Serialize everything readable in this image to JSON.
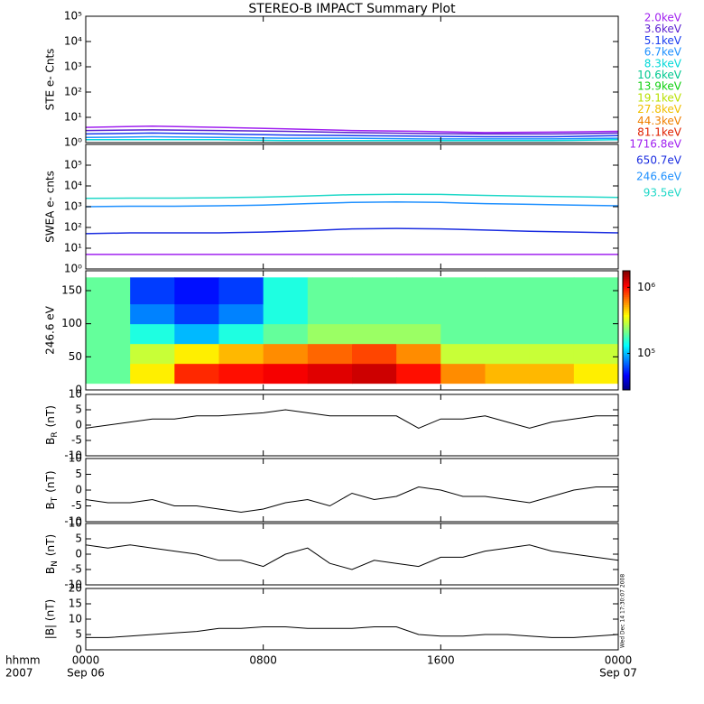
{
  "title": "STEREO-B IMPACT Summary Plot",
  "timestamp": "Wed Dec 14 17:30:07 2008",
  "x_axis": {
    "xlim": [
      0,
      24
    ],
    "xticks": [
      {
        "value": 0,
        "label": "0000"
      },
      {
        "value": 8,
        "label": "0800"
      },
      {
        "value": 16,
        "label": "1600"
      },
      {
        "value": 24,
        "label": "0000"
      }
    ],
    "date_labels": [
      {
        "value": 0,
        "label": "Sep 06"
      },
      {
        "value": 24,
        "label": "Sep 07"
      }
    ],
    "row_labels": [
      "hhmm",
      "2007"
    ]
  },
  "chart_data": [
    {
      "type": "line",
      "ylabel": "STE e- Cnts",
      "log": true,
      "ylim": [
        1,
        100000
      ],
      "yticks": [
        {
          "value": 1,
          "label": "10⁰"
        },
        {
          "value": 10,
          "label": "10¹"
        },
        {
          "value": 100,
          "label": "10²"
        },
        {
          "value": 1000,
          "label": "10³"
        },
        {
          "value": 10000,
          "label": "10⁴"
        },
        {
          "value": 100000,
          "label": "10⁵"
        }
      ],
      "x": [
        0,
        3,
        6,
        9,
        12,
        15,
        18,
        21,
        24
      ],
      "series": [
        {
          "name": "2.0keV",
          "color": "#a020f0",
          "values": [
            4,
            4.5,
            4,
            3.5,
            3,
            2.8,
            2.5,
            2.6,
            2.8
          ]
        },
        {
          "name": "3.6keV",
          "color": "#5a1fd0",
          "values": [
            3,
            3.2,
            3,
            2.8,
            2.5,
            2.3,
            2.2,
            2.2,
            2.4
          ]
        },
        {
          "name": "5.1keV",
          "color": "#1a3cf0",
          "values": [
            2.2,
            2.4,
            2.2,
            2,
            1.9,
            1.8,
            1.7,
            1.7,
            1.9
          ]
        },
        {
          "name": "6.7keV",
          "color": "#1e90ff",
          "values": [
            1.6,
            1.7,
            1.6,
            1.5,
            1.5,
            1.4,
            1.4,
            1.4,
            1.5
          ]
        },
        {
          "name": "8.3keV",
          "color": "#00d8d8",
          "values": [
            1.3,
            1.3,
            1.3,
            1.2,
            1.2,
            1.2,
            1.2,
            1.2,
            1.3
          ]
        },
        {
          "name": "10.6keV",
          "color": "#00c890",
          "values": [
            null,
            null,
            null,
            null,
            null,
            null,
            null,
            null,
            null
          ]
        },
        {
          "name": "13.9keV",
          "color": "#10d010",
          "values": [
            null,
            null,
            null,
            null,
            null,
            null,
            null,
            null,
            null
          ]
        },
        {
          "name": "19.1keV",
          "color": "#b8e000",
          "values": [
            null,
            null,
            null,
            null,
            null,
            null,
            null,
            null,
            null
          ]
        },
        {
          "name": "27.8keV",
          "color": "#f0c000",
          "values": [
            null,
            null,
            null,
            null,
            null,
            null,
            null,
            null,
            null
          ]
        },
        {
          "name": "44.3keV",
          "color": "#f08000",
          "values": [
            null,
            null,
            null,
            null,
            null,
            null,
            null,
            null,
            null
          ]
        },
        {
          "name": "81.1keV",
          "color": "#e02000",
          "values": [
            null,
            null,
            null,
            null,
            null,
            null,
            null,
            null,
            null
          ]
        }
      ]
    },
    {
      "type": "line",
      "ylabel": "SWEA e- cnts",
      "log": true,
      "ylim": [
        1,
        1000000
      ],
      "yticks": [
        {
          "value": 1,
          "label": "10⁰"
        },
        {
          "value": 10,
          "label": "10¹"
        },
        {
          "value": 100,
          "label": "10²"
        },
        {
          "value": 1000,
          "label": "10³"
        },
        {
          "value": 10000,
          "label": "10⁴"
        },
        {
          "value": 100000,
          "label": "10⁵"
        }
      ],
      "x": [
        0,
        2,
        4,
        6,
        8,
        10,
        12,
        14,
        16,
        18,
        20,
        22,
        24
      ],
      "series": [
        {
          "name": "1716.8eV",
          "color": "#a020f0",
          "values": [
            5,
            5,
            5,
            5,
            5,
            5,
            5,
            5,
            5,
            5,
            5,
            5,
            5
          ]
        },
        {
          "name": "650.7eV",
          "color": "#1a2ce0",
          "values": [
            50,
            55,
            55,
            55,
            60,
            70,
            85,
            90,
            85,
            75,
            65,
            60,
            55
          ]
        },
        {
          "name": "246.6eV",
          "color": "#1e90ff",
          "values": [
            1000,
            1050,
            1050,
            1100,
            1200,
            1400,
            1600,
            1700,
            1600,
            1400,
            1300,
            1200,
            1100
          ]
        },
        {
          "name": "93.5eV",
          "color": "#20d8c8",
          "values": [
            2500,
            2600,
            2600,
            2700,
            2900,
            3300,
            3800,
            4000,
            3900,
            3500,
            3200,
            3000,
            2800
          ]
        }
      ]
    },
    {
      "type": "heatmap",
      "ylabel": "246.6 eV",
      "ylim": [
        0,
        180
      ],
      "yticks": [
        0,
        50,
        100,
        150
      ],
      "x_edges": [
        0,
        2,
        4,
        6,
        8,
        10,
        12,
        14,
        16,
        18,
        20,
        22,
        24
      ],
      "y_edges": [
        10,
        40,
        70,
        100,
        130,
        170
      ],
      "z": [
        [
          200000,
          400000,
          900000,
          1000000,
          1100000,
          1200000,
          1300000,
          1000000,
          600000,
          500000,
          500000,
          400000
        ],
        [
          200000,
          300000,
          400000,
          500000,
          600000,
          700000,
          800000,
          600000,
          300000,
          300000,
          300000,
          300000
        ],
        [
          200000,
          150000,
          100000,
          150000,
          200000,
          250000,
          250000,
          250000,
          200000,
          200000,
          200000,
          200000
        ],
        [
          200000,
          80000,
          60000,
          80000,
          150000,
          200000,
          200000,
          200000,
          200000,
          200000,
          200000,
          200000
        ],
        [
          200000,
          60000,
          50000,
          60000,
          150000,
          200000,
          200000,
          200000,
          200000,
          200000,
          200000,
          200000
        ]
      ],
      "zlim": [
        28000,
        1780000
      ],
      "zlog": true,
      "zticks": [
        {
          "value": 100000,
          "label": "10⁵"
        },
        {
          "value": 1000000,
          "label": "10⁶"
        }
      ]
    },
    {
      "type": "line",
      "ylabel": {
        "main": "B",
        "sub": "R",
        "unit": "(nT)"
      },
      "ylim": [
        -10,
        10
      ],
      "yticks": [
        -10,
        -5,
        0,
        5,
        10
      ],
      "x": [
        0,
        1,
        2,
        3,
        4,
        5,
        6,
        7,
        8,
        9,
        10,
        11,
        12,
        13,
        14,
        15,
        16,
        17,
        18,
        19,
        20,
        21,
        22,
        23,
        24
      ],
      "series": [
        {
          "color": "#000000",
          "values": [
            -1,
            0,
            1,
            2,
            2,
            3,
            3,
            3.5,
            4,
            5,
            4,
            3,
            3,
            3,
            3,
            -1,
            2,
            2,
            3,
            1,
            -1,
            1,
            2,
            3,
            3
          ]
        }
      ]
    },
    {
      "type": "line",
      "ylabel": {
        "main": "B",
        "sub": "T",
        "unit": "(nT)"
      },
      "ylim": [
        -10,
        10
      ],
      "yticks": [
        -10,
        -5,
        0,
        5,
        10
      ],
      "x": [
        0,
        1,
        2,
        3,
        4,
        5,
        6,
        7,
        8,
        9,
        10,
        11,
        12,
        13,
        14,
        15,
        16,
        17,
        18,
        19,
        20,
        21,
        22,
        23,
        24
      ],
      "series": [
        {
          "color": "#000000",
          "values": [
            -3,
            -4,
            -4,
            -3,
            -5,
            -5,
            -6,
            -7,
            -6,
            -4,
            -3,
            -5,
            -1,
            -3,
            -2,
            1,
            0,
            -2,
            -2,
            -3,
            -4,
            -2,
            0,
            1,
            1
          ]
        }
      ]
    },
    {
      "type": "line",
      "ylabel": {
        "main": "B",
        "sub": "N",
        "unit": "(nT)"
      },
      "ylim": [
        -10,
        10
      ],
      "yticks": [
        -10,
        -5,
        0,
        5,
        10
      ],
      "x": [
        0,
        1,
        2,
        3,
        4,
        5,
        6,
        7,
        8,
        9,
        10,
        11,
        12,
        13,
        14,
        15,
        16,
        17,
        18,
        19,
        20,
        21,
        22,
        23,
        24
      ],
      "series": [
        {
          "color": "#000000",
          "values": [
            3,
            2,
            3,
            2,
            1,
            0,
            -2,
            -2,
            -4,
            0,
            2,
            -3,
            -5,
            -2,
            -3,
            -4,
            -1,
            -1,
            1,
            2,
            3,
            1,
            0,
            -1,
            -2
          ]
        }
      ]
    },
    {
      "type": "line",
      "ylabel": "|B| (nT)",
      "ylim": [
        0,
        20
      ],
      "yticks": [
        0,
        5,
        10,
        15,
        20
      ],
      "x": [
        0,
        1,
        2,
        3,
        4,
        5,
        6,
        7,
        8,
        9,
        10,
        11,
        12,
        13,
        14,
        15,
        16,
        17,
        18,
        19,
        20,
        21,
        22,
        23,
        24
      ],
      "series": [
        {
          "color": "#000000",
          "values": [
            4,
            4,
            4.5,
            5,
            5.5,
            6,
            7,
            7,
            7.5,
            7.5,
            7,
            7,
            7,
            7.5,
            7.5,
            5,
            4.5,
            4.5,
            5,
            5,
            4.5,
            4,
            4,
            4.5,
            5
          ]
        }
      ]
    }
  ]
}
